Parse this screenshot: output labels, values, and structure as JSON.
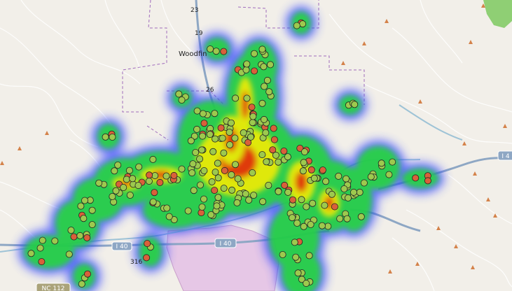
{
  "map": {
    "place_labels": [
      {
        "id": "woodfin",
        "text": "Woodfin"
      }
    ],
    "road_shields": [
      {
        "id": "i40",
        "text": "I 40"
      },
      {
        "id": "i40-east",
        "text": "I 4"
      },
      {
        "id": "nc112",
        "text": "NC 112"
      },
      {
        "id": "r23",
        "text": "23"
      },
      {
        "id": "r26",
        "text": "26"
      },
      {
        "id": "r19",
        "text": "19"
      },
      {
        "id": "r316",
        "text": "316"
      },
      {
        "id": "r40w",
        "text": "I 40"
      }
    ],
    "colors": {
      "land": "#f2efe9",
      "water": "#9ec3d6",
      "park": "#e6c7e6",
      "forest": "#8fcf74",
      "motorway": "#8ea7c4",
      "boundary": "#a06cbc",
      "heat_low": "#3344ff",
      "heat_mid": "#22dd33",
      "heat_high": "#ffee00",
      "heat_peak": "#ff2200",
      "marker_green": "#9dc94e",
      "marker_red": "#d9603a",
      "peak": "#d4824a"
    }
  }
}
